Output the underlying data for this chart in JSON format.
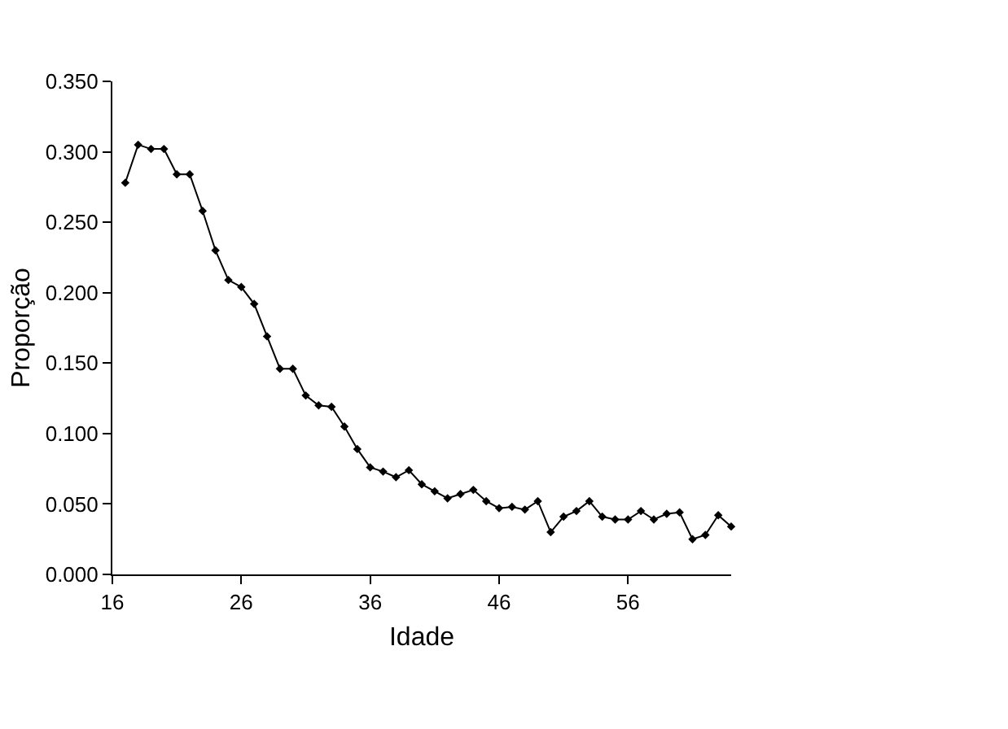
{
  "chart_data": {
    "type": "line",
    "xlabel": "Idade",
    "ylabel": "Proporção",
    "x": [
      17,
      18,
      19,
      20,
      21,
      22,
      23,
      24,
      25,
      26,
      27,
      28,
      29,
      30,
      31,
      32,
      33,
      34,
      35,
      36,
      37,
      38,
      39,
      40,
      41,
      42,
      43,
      44,
      45,
      46,
      47,
      48,
      49,
      50,
      51,
      52,
      53,
      54,
      55,
      56,
      57,
      58,
      59,
      60,
      61,
      62,
      63,
      64
    ],
    "series": [
      {
        "color": "#000000",
        "values": [
          0.278,
          0.305,
          0.302,
          0.302,
          0.284,
          0.284,
          0.258,
          0.23,
          0.209,
          0.204,
          0.192,
          0.169,
          0.146,
          0.146,
          0.127,
          0.12,
          0.119,
          0.105,
          0.089,
          0.076,
          0.073,
          0.069,
          0.074,
          0.064,
          0.059,
          0.054,
          0.057,
          0.06,
          0.052,
          0.047,
          0.048,
          0.046,
          0.052,
          0.03,
          0.041,
          0.045,
          0.052,
          0.041,
          0.039,
          0.039,
          0.045,
          0.039,
          0.043,
          0.044,
          0.025,
          0.028,
          0.042,
          0.034
        ]
      }
    ],
    "xlim": [
      16,
      64
    ],
    "xticks": [
      16,
      26,
      36,
      46,
      56
    ],
    "ylim": [
      0,
      0.35
    ],
    "yticks": [
      {
        "value": 0,
        "label": "0.000"
      },
      {
        "value": 0.05,
        "label": "0.050"
      },
      {
        "value": 0.1,
        "label": "0.100"
      },
      {
        "value": 0.15,
        "label": "0.150"
      },
      {
        "value": 0.2,
        "label": "0.200"
      },
      {
        "value": 0.25,
        "label": "0.250"
      },
      {
        "value": 0.3,
        "label": "0.300"
      },
      {
        "value": 0.35,
        "label": "0.350"
      }
    ],
    "marker": "diamond",
    "line_style": "solid"
  }
}
